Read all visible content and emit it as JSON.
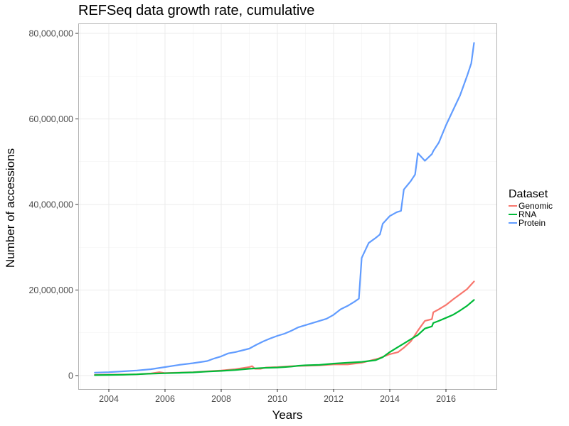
{
  "chart_data": {
    "type": "line",
    "title": "REFSeq data growth rate, cumulative",
    "xlabel": "Years",
    "ylabel": "Number of accessions",
    "xlim": [
      2003.25,
      2017.5
    ],
    "ylim": [
      -2000000,
      82000000
    ],
    "x_ticks": [
      2004,
      2006,
      2008,
      2010,
      2012,
      2014,
      2016
    ],
    "x_tick_labels": [
      "2004",
      "2006",
      "2008",
      "2010",
      "2012",
      "2014",
      "2016"
    ],
    "y_ticks": [
      0,
      20000000,
      40000000,
      60000000,
      80000000
    ],
    "y_tick_labels": [
      "0",
      "20,000,000",
      "40,000,000",
      "60,000,000",
      "80,000,000"
    ],
    "grid": true,
    "legend": {
      "title": "Dataset",
      "placement": "right"
    },
    "series": [
      {
        "name": "Genomic",
        "color": "#f8766d",
        "points": [
          [
            2003.5,
            200000
          ],
          [
            2004.5,
            250000
          ],
          [
            2005.0,
            300000
          ],
          [
            2005.5,
            500000
          ],
          [
            2005.8,
            800000
          ],
          [
            2006.0,
            600000
          ],
          [
            2006.5,
            700000
          ],
          [
            2007.0,
            800000
          ],
          [
            2007.5,
            1000000
          ],
          [
            2008.0,
            1200000
          ],
          [
            2008.5,
            1500000
          ],
          [
            2008.8,
            1800000
          ],
          [
            2009.0,
            2000000
          ],
          [
            2009.1,
            2200000
          ],
          [
            2009.2,
            1600000
          ],
          [
            2009.4,
            1600000
          ],
          [
            2009.6,
            1900000
          ],
          [
            2010.0,
            2000000
          ],
          [
            2010.5,
            2200000
          ],
          [
            2011.0,
            2300000
          ],
          [
            2011.5,
            2400000
          ],
          [
            2012.0,
            2600000
          ],
          [
            2012.5,
            2600000
          ],
          [
            2013.0,
            3000000
          ],
          [
            2013.3,
            3500000
          ],
          [
            2013.6,
            4000000
          ],
          [
            2014.0,
            5000000
          ],
          [
            2014.3,
            5500000
          ],
          [
            2014.5,
            6500000
          ],
          [
            2014.75,
            8000000
          ],
          [
            2015.0,
            10500000
          ],
          [
            2015.25,
            12800000
          ],
          [
            2015.5,
            13200000
          ],
          [
            2015.55,
            14800000
          ],
          [
            2015.75,
            15500000
          ],
          [
            2016.0,
            16500000
          ],
          [
            2016.25,
            17800000
          ],
          [
            2016.5,
            19000000
          ],
          [
            2016.75,
            20200000
          ],
          [
            2017.0,
            22000000
          ]
        ]
      },
      {
        "name": "RNA",
        "color": "#00ba38",
        "points": [
          [
            2003.5,
            100000
          ],
          [
            2004.0,
            150000
          ],
          [
            2004.5,
            200000
          ],
          [
            2005.0,
            300000
          ],
          [
            2005.25,
            400000
          ],
          [
            2005.5,
            450000
          ],
          [
            2006.0,
            550000
          ],
          [
            2006.5,
            650000
          ],
          [
            2007.0,
            750000
          ],
          [
            2007.5,
            950000
          ],
          [
            2008.0,
            1100000
          ],
          [
            2008.5,
            1300000
          ],
          [
            2009.0,
            1600000
          ],
          [
            2009.5,
            1800000
          ],
          [
            2010.0,
            1900000
          ],
          [
            2010.25,
            2000000
          ],
          [
            2010.5,
            2100000
          ],
          [
            2010.75,
            2300000
          ],
          [
            2011.0,
            2400000
          ],
          [
            2011.5,
            2500000
          ],
          [
            2012.0,
            2800000
          ],
          [
            2012.5,
            3000000
          ],
          [
            2013.0,
            3200000
          ],
          [
            2013.25,
            3400000
          ],
          [
            2013.5,
            3600000
          ],
          [
            2013.75,
            4300000
          ],
          [
            2014.0,
            5500000
          ],
          [
            2014.25,
            6500000
          ],
          [
            2014.5,
            7500000
          ],
          [
            2014.75,
            8500000
          ],
          [
            2015.0,
            9500000
          ],
          [
            2015.25,
            11000000
          ],
          [
            2015.5,
            11500000
          ],
          [
            2015.55,
            12300000
          ],
          [
            2015.75,
            12800000
          ],
          [
            2016.0,
            13500000
          ],
          [
            2016.25,
            14200000
          ],
          [
            2016.5,
            15200000
          ],
          [
            2016.75,
            16300000
          ],
          [
            2017.0,
            17700000
          ]
        ]
      },
      {
        "name": "Protein",
        "color": "#619cff",
        "points": [
          [
            2003.5,
            700000
          ],
          [
            2004.0,
            800000
          ],
          [
            2004.5,
            1000000
          ],
          [
            2005.0,
            1200000
          ],
          [
            2005.5,
            1500000
          ],
          [
            2006.0,
            2000000
          ],
          [
            2006.5,
            2500000
          ],
          [
            2007.0,
            2900000
          ],
          [
            2007.5,
            3400000
          ],
          [
            2007.75,
            4000000
          ],
          [
            2008.0,
            4500000
          ],
          [
            2008.25,
            5200000
          ],
          [
            2008.5,
            5500000
          ],
          [
            2008.75,
            5900000
          ],
          [
            2009.0,
            6300000
          ],
          [
            2009.25,
            7200000
          ],
          [
            2009.5,
            8000000
          ],
          [
            2009.75,
            8700000
          ],
          [
            2010.0,
            9300000
          ],
          [
            2010.25,
            9800000
          ],
          [
            2010.5,
            10500000
          ],
          [
            2010.75,
            11300000
          ],
          [
            2011.0,
            11800000
          ],
          [
            2011.5,
            12800000
          ],
          [
            2011.75,
            13300000
          ],
          [
            2012.0,
            14200000
          ],
          [
            2012.25,
            15500000
          ],
          [
            2012.5,
            16300000
          ],
          [
            2012.75,
            17300000
          ],
          [
            2012.9,
            18000000
          ],
          [
            2013.0,
            27500000
          ],
          [
            2013.25,
            31000000
          ],
          [
            2013.5,
            32200000
          ],
          [
            2013.65,
            33000000
          ],
          [
            2013.75,
            35500000
          ],
          [
            2014.0,
            37300000
          ],
          [
            2014.25,
            38200000
          ],
          [
            2014.4,
            38500000
          ],
          [
            2014.5,
            43500000
          ],
          [
            2014.75,
            45500000
          ],
          [
            2014.9,
            47000000
          ],
          [
            2015.0,
            52000000
          ],
          [
            2015.25,
            50200000
          ],
          [
            2015.5,
            51800000
          ],
          [
            2015.55,
            52500000
          ],
          [
            2015.75,
            54500000
          ],
          [
            2016.0,
            58500000
          ],
          [
            2016.25,
            62000000
          ],
          [
            2016.5,
            65500000
          ],
          [
            2016.75,
            70000000
          ],
          [
            2016.9,
            73000000
          ],
          [
            2017.0,
            77800000
          ]
        ]
      }
    ]
  }
}
